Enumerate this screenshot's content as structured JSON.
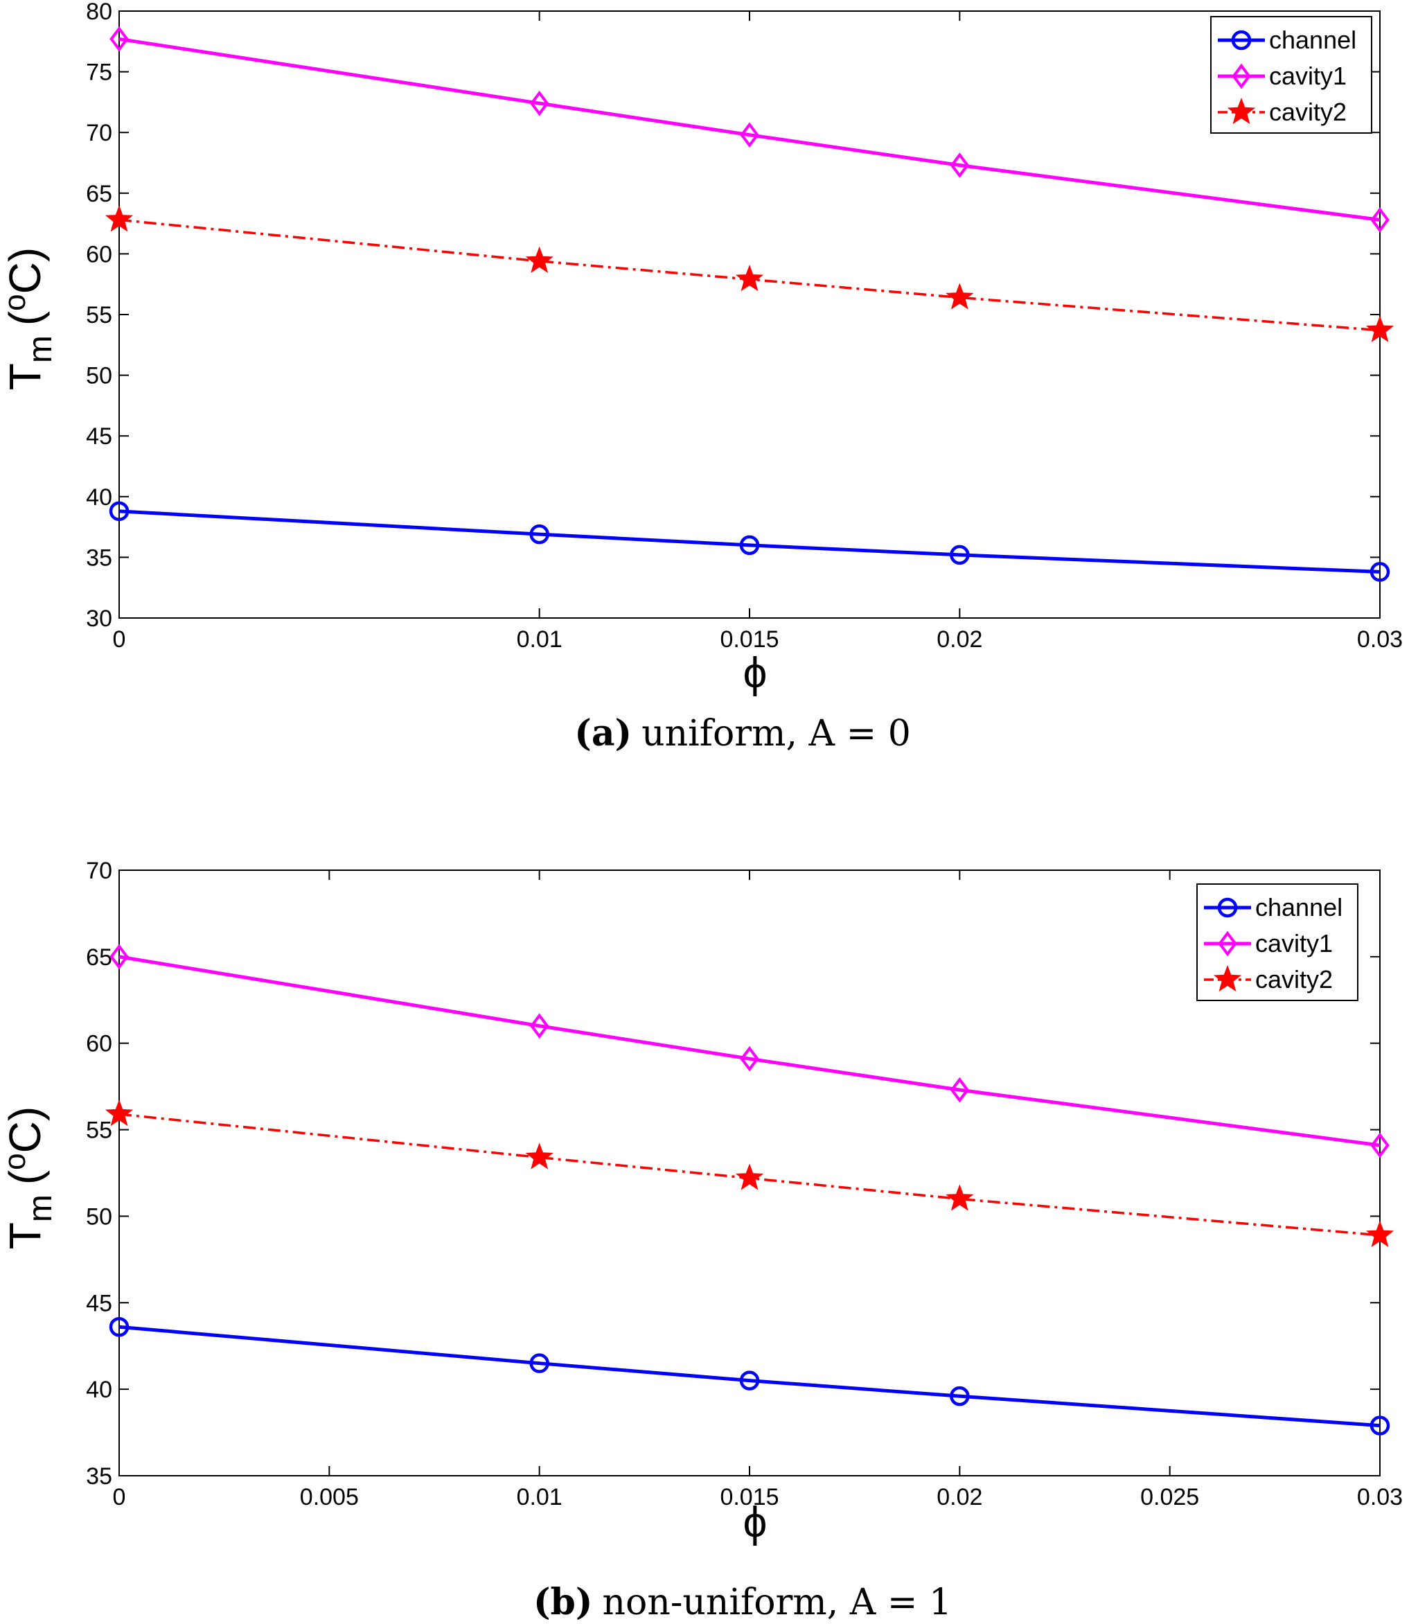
{
  "chart_data": [
    {
      "type": "line",
      "x": [
        0,
        0.01,
        0.015,
        0.02,
        0.03
      ],
      "xticks": [
        "0",
        "0.01",
        "0.015",
        "0.02",
        "0.03"
      ],
      "xlim": [
        0,
        0.03
      ],
      "ylim": [
        30,
        80
      ],
      "yticks": [
        "30",
        "35",
        "40",
        "45",
        "50",
        "55",
        "60",
        "65",
        "70",
        "75",
        "80"
      ],
      "xlabel": "ϕ",
      "ylabel_main": "T",
      "ylabel_sub": "m",
      "ylabel_unit_open": "(",
      "ylabel_unit_sup": "o",
      "ylabel_unit_close": "C)",
      "caption_label": "(a)",
      "caption_text": "uniform, A = 0",
      "legend_position": "top-right",
      "series": [
        {
          "name": "channel",
          "values": [
            38.8,
            36.9,
            36.0,
            35.2,
            33.8
          ],
          "color": "#0000ff",
          "marker": "circle",
          "dash": "solid"
        },
        {
          "name": "cavity1",
          "values": [
            77.7,
            72.4,
            69.8,
            67.3,
            62.8
          ],
          "color": "#ff00ff",
          "marker": "diamond",
          "dash": "solid"
        },
        {
          "name": "cavity2",
          "values": [
            62.8,
            59.4,
            57.9,
            56.4,
            53.7
          ],
          "color": "#ff0000",
          "marker": "star",
          "dash": "dashdot"
        }
      ]
    },
    {
      "type": "line",
      "x": [
        0,
        0.01,
        0.015,
        0.02,
        0.03
      ],
      "xticks": [
        "0",
        "0.005",
        "0.01",
        "0.015",
        "0.02",
        "0.025",
        "0.03"
      ],
      "xlim": [
        0,
        0.03
      ],
      "ylim": [
        35,
        70
      ],
      "yticks": [
        "35",
        "40",
        "45",
        "50",
        "55",
        "60",
        "65",
        "70"
      ],
      "xlabel": "ϕ",
      "ylabel_main": "T",
      "ylabel_sub": "m",
      "ylabel_unit_open": "(",
      "ylabel_unit_sup": "o",
      "ylabel_unit_close": "C)",
      "caption_label": "(b)",
      "caption_text": "non-uniform, A = 1",
      "legend_position": "top-right",
      "series": [
        {
          "name": "channel",
          "values": [
            43.6,
            41.5,
            40.5,
            39.6,
            37.9
          ],
          "color": "#0000ff",
          "marker": "circle",
          "dash": "solid"
        },
        {
          "name": "cavity1",
          "values": [
            65.0,
            61.0,
            59.1,
            57.3,
            54.1
          ],
          "color": "#ff00ff",
          "marker": "diamond",
          "dash": "solid"
        },
        {
          "name": "cavity2",
          "values": [
            55.9,
            53.4,
            52.2,
            51.0,
            48.9
          ],
          "color": "#ff0000",
          "marker": "star",
          "dash": "dashdot"
        }
      ]
    }
  ]
}
